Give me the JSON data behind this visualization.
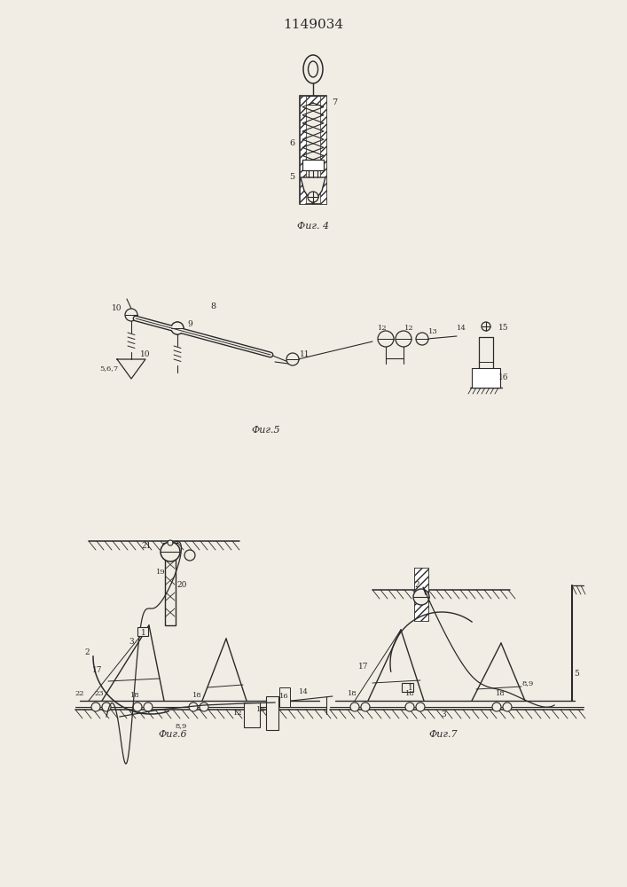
{
  "title": "1149034",
  "fig4_caption": "Фиг. 4",
  "fig5_caption": "Фиг.5",
  "fig6_caption": "Фиг.6",
  "fig7_caption": "Фиг.7",
  "bg_color": "#f2ede4",
  "line_color": "#2a2a2a"
}
